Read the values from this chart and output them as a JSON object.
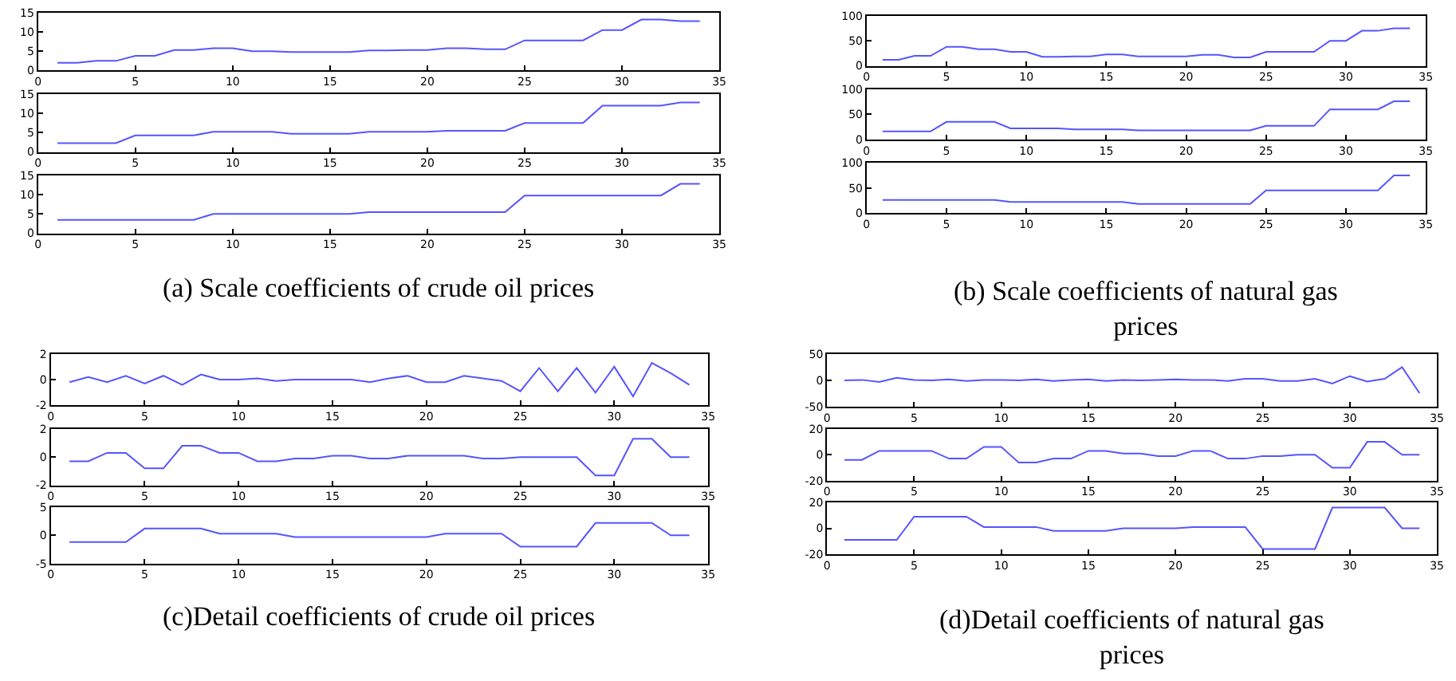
{
  "chart_data": [
    {
      "type": "line",
      "x": [
        1,
        2,
        3,
        4,
        5,
        6,
        7,
        8,
        9,
        10,
        11,
        12,
        13,
        14,
        15,
        16,
        17,
        18,
        19,
        20,
        21,
        22,
        23,
        24,
        25,
        26,
        27,
        28,
        29,
        30,
        31,
        32,
        33,
        34
      ],
      "values": [
        2,
        2,
        2.5,
        2.5,
        3.8,
        3.8,
        5.3,
        5.3,
        5.8,
        5.8,
        5,
        5,
        4.8,
        4.8,
        4.8,
        4.8,
        5.2,
        5.2,
        5.3,
        5.3,
        5.8,
        5.8,
        5.5,
        5.5,
        7.8,
        7.8,
        7.8,
        7.8,
        10.5,
        10.5,
        13.2,
        13.2,
        12.8,
        12.8
      ],
      "color": "#5555ff",
      "xlim": [
        0,
        35
      ],
      "xticks": [
        0,
        5,
        10,
        15,
        20,
        25,
        30,
        35
      ],
      "ylim": [
        0,
        15
      ],
      "yticks": [
        0,
        5,
        10,
        15
      ]
    },
    {
      "type": "line",
      "x": [
        1,
        2,
        3,
        4,
        5,
        6,
        7,
        8,
        9,
        10,
        11,
        12,
        13,
        14,
        15,
        16,
        17,
        18,
        19,
        20,
        21,
        22,
        23,
        24,
        25,
        26,
        27,
        28,
        29,
        30,
        31,
        32,
        33,
        34
      ],
      "values": [
        2.3,
        2.3,
        2.3,
        2.3,
        4.3,
        4.3,
        4.3,
        4.3,
        5.2,
        5.2,
        5.2,
        5.2,
        4.7,
        4.7,
        4.7,
        4.7,
        5.2,
        5.2,
        5.2,
        5.2,
        5.5,
        5.5,
        5.5,
        5.5,
        7.5,
        7.5,
        7.5,
        7.5,
        12,
        12,
        12,
        12,
        12.8,
        12.8
      ],
      "color": "#5555ff",
      "xlim": [
        0,
        35
      ],
      "xticks": [
        0,
        5,
        10,
        15,
        20,
        25,
        30,
        35
      ],
      "ylim": [
        0,
        15
      ],
      "yticks": [
        0,
        5,
        10,
        15
      ]
    },
    {
      "type": "line",
      "x": [
        1,
        2,
        3,
        4,
        5,
        6,
        7,
        8,
        9,
        10,
        11,
        12,
        13,
        14,
        15,
        16,
        17,
        18,
        19,
        20,
        21,
        22,
        23,
        24,
        25,
        26,
        27,
        28,
        29,
        30,
        31,
        32,
        33,
        34
      ],
      "values": [
        3.5,
        3.5,
        3.5,
        3.5,
        3.5,
        3.5,
        3.5,
        3.5,
        5,
        5,
        5,
        5,
        5,
        5,
        5,
        5,
        5.5,
        5.5,
        5.5,
        5.5,
        5.5,
        5.5,
        5.5,
        5.5,
        9.8,
        9.8,
        9.8,
        9.8,
        9.8,
        9.8,
        9.8,
        9.8,
        12.8,
        12.8
      ],
      "color": "#5555ff",
      "xlim": [
        0,
        35
      ],
      "xticks": [
        0,
        5,
        10,
        15,
        20,
        25,
        30,
        35
      ],
      "ylim": [
        0,
        15
      ],
      "yticks": [
        0,
        5,
        10,
        15
      ],
      "annotations": [
        "(a) Scale coefficients of crude oil prices"
      ]
    },
    {
      "type": "line",
      "x": [
        1,
        2,
        3,
        4,
        5,
        6,
        7,
        8,
        9,
        10,
        11,
        12,
        13,
        14,
        15,
        16,
        17,
        18,
        19,
        20,
        21,
        22,
        23,
        24,
        25,
        26,
        27,
        28,
        29,
        30,
        31,
        32,
        33,
        34
      ],
      "values": [
        12,
        12,
        20,
        20,
        38,
        38,
        33,
        33,
        28,
        28,
        18,
        18,
        19,
        19,
        23,
        23,
        19,
        19,
        19,
        19,
        22,
        22,
        17,
        17,
        28,
        28,
        28,
        28,
        50,
        50,
        70,
        70,
        75,
        75
      ],
      "color": "#5555ff",
      "xlim": [
        0,
        35
      ],
      "xticks": [
        0,
        5,
        10,
        15,
        20,
        25,
        30,
        35
      ],
      "ylim": [
        0,
        100
      ],
      "yticks": [
        0,
        50,
        100
      ]
    },
    {
      "type": "line",
      "x": [
        1,
        2,
        3,
        4,
        5,
        6,
        7,
        8,
        9,
        10,
        11,
        12,
        13,
        14,
        15,
        16,
        17,
        18,
        19,
        20,
        21,
        22,
        23,
        24,
        25,
        26,
        27,
        28,
        29,
        30,
        31,
        32,
        33,
        34
      ],
      "values": [
        16,
        16,
        16,
        16,
        35,
        35,
        35,
        35,
        22,
        22,
        22,
        22,
        20,
        20,
        20,
        20,
        18,
        18,
        18,
        18,
        18,
        18,
        18,
        18,
        27,
        27,
        27,
        27,
        60,
        60,
        60,
        60,
        76,
        76
      ],
      "color": "#5555ff",
      "xlim": [
        0,
        35
      ],
      "xticks": [
        0,
        5,
        10,
        15,
        20,
        25,
        30,
        35
      ],
      "ylim": [
        0,
        100
      ],
      "yticks": [
        0,
        50,
        100
      ]
    },
    {
      "type": "line",
      "x": [
        1,
        2,
        3,
        4,
        5,
        6,
        7,
        8,
        9,
        10,
        11,
        12,
        13,
        14,
        15,
        16,
        17,
        18,
        19,
        20,
        21,
        22,
        23,
        24,
        25,
        26,
        27,
        28,
        29,
        30,
        31,
        32,
        33,
        34
      ],
      "values": [
        26,
        26,
        26,
        26,
        26,
        26,
        26,
        26,
        22,
        22,
        22,
        22,
        22,
        22,
        22,
        22,
        18,
        18,
        18,
        18,
        18,
        18,
        18,
        18,
        45,
        45,
        45,
        45,
        45,
        45,
        45,
        45,
        75,
        75
      ],
      "color": "#5555ff",
      "xlim": [
        0,
        35
      ],
      "xticks": [
        0,
        5,
        10,
        15,
        20,
        25,
        30,
        35
      ],
      "ylim": [
        0,
        100
      ],
      "yticks": [
        0,
        50,
        100
      ],
      "annotations": [
        "(b) Scale coefficients of natural gas prices"
      ]
    },
    {
      "type": "line",
      "x": [
        1,
        2,
        3,
        4,
        5,
        6,
        7,
        8,
        9,
        10,
        11,
        12,
        13,
        14,
        15,
        16,
        17,
        18,
        19,
        20,
        21,
        22,
        23,
        24,
        25,
        26,
        27,
        28,
        29,
        30,
        31,
        32,
        33,
        34
      ],
      "values": [
        -0.2,
        0.2,
        -0.2,
        0.3,
        -0.3,
        0.3,
        -0.4,
        0.4,
        0,
        0,
        0.1,
        -0.1,
        0,
        0,
        0,
        0,
        -0.2,
        0.1,
        0.3,
        -0.2,
        -0.2,
        0.3,
        0.1,
        -0.1,
        -0.9,
        0.9,
        -0.9,
        0.9,
        -1,
        1,
        -1.3,
        1.3,
        0.5,
        -0.4
      ],
      "color": "#5555ff",
      "xlim": [
        0,
        35
      ],
      "xticks": [
        0,
        5,
        10,
        15,
        20,
        25,
        30,
        35
      ],
      "ylim": [
        -2,
        2
      ],
      "yticks": [
        -2,
        0,
        2
      ]
    },
    {
      "type": "line",
      "x": [
        1,
        2,
        3,
        4,
        5,
        6,
        7,
        8,
        9,
        10,
        11,
        12,
        13,
        14,
        15,
        16,
        17,
        18,
        19,
        20,
        21,
        22,
        23,
        24,
        25,
        26,
        27,
        28,
        29,
        30,
        31,
        32,
        33,
        34
      ],
      "values": [
        -0.3,
        -0.3,
        0.3,
        0.3,
        -0.8,
        -0.8,
        0.8,
        0.8,
        0.3,
        0.3,
        -0.3,
        -0.3,
        -0.1,
        -0.1,
        0.1,
        0.1,
        -0.1,
        -0.1,
        0.1,
        0.1,
        0.1,
        0.1,
        -0.1,
        -0.1,
        0,
        0,
        0,
        0,
        -1.3,
        -1.3,
        1.3,
        1.3,
        0,
        0
      ],
      "color": "#5555ff",
      "xlim": [
        0,
        35
      ],
      "xticks": [
        0,
        5,
        10,
        15,
        20,
        25,
        30,
        35
      ],
      "ylim": [
        -2,
        2
      ],
      "yticks": [
        -2,
        0,
        2
      ]
    },
    {
      "type": "line",
      "x": [
        1,
        2,
        3,
        4,
        5,
        6,
        7,
        8,
        9,
        10,
        11,
        12,
        13,
        14,
        15,
        16,
        17,
        18,
        19,
        20,
        21,
        22,
        23,
        24,
        25,
        26,
        27,
        28,
        29,
        30,
        31,
        32,
        33,
        34
      ],
      "values": [
        -1.2,
        -1.2,
        -1.2,
        -1.2,
        1.2,
        1.2,
        1.2,
        1.2,
        0.3,
        0.3,
        0.3,
        0.3,
        -0.3,
        -0.3,
        -0.3,
        -0.3,
        -0.3,
        -0.3,
        -0.3,
        -0.3,
        0.3,
        0.3,
        0.3,
        0.3,
        -2,
        -2,
        -2,
        -2,
        2.2,
        2.2,
        2.2,
        2.2,
        0,
        0
      ],
      "color": "#5555ff",
      "xlim": [
        0,
        35
      ],
      "xticks": [
        0,
        5,
        10,
        15,
        20,
        25,
        30,
        35
      ],
      "ylim": [
        -5,
        5
      ],
      "yticks": [
        -5,
        0,
        5
      ],
      "annotations": [
        "(c)Detail coefficients of crude oil prices"
      ]
    },
    {
      "type": "line",
      "x": [
        1,
        2,
        3,
        4,
        5,
        6,
        7,
        8,
        9,
        10,
        11,
        12,
        13,
        14,
        15,
        16,
        17,
        18,
        19,
        20,
        21,
        22,
        23,
        24,
        25,
        26,
        27,
        28,
        29,
        30,
        31,
        32,
        33,
        34
      ],
      "values": [
        0,
        1,
        -3,
        5,
        1,
        0,
        2,
        -1,
        1,
        1,
        0,
        2,
        -1,
        1,
        2,
        -1,
        1,
        0,
        1,
        2,
        1,
        1,
        -1,
        3,
        3,
        -1,
        -1,
        3,
        -6,
        8,
        -2,
        3,
        25,
        -24
      ],
      "color": "#5555ff",
      "xlim": [
        0,
        35
      ],
      "xticks": [
        0,
        5,
        10,
        15,
        20,
        25,
        30,
        35
      ],
      "ylim": [
        -50,
        50
      ],
      "yticks": [
        -50,
        0,
        50
      ]
    },
    {
      "type": "line",
      "x": [
        1,
        2,
        3,
        4,
        5,
        6,
        7,
        8,
        9,
        10,
        11,
        12,
        13,
        14,
        15,
        16,
        17,
        18,
        19,
        20,
        21,
        22,
        23,
        24,
        25,
        26,
        27,
        28,
        29,
        30,
        31,
        32,
        33,
        34
      ],
      "values": [
        -4,
        -4,
        3,
        3,
        3,
        3,
        -3,
        -3,
        6,
        6,
        -6,
        -6,
        -3,
        -3,
        3,
        3,
        1,
        1,
        -1,
        -1,
        3,
        3,
        -3,
        -3,
        -1,
        -1,
        0,
        0,
        -10,
        -10,
        10,
        10,
        0,
        0
      ],
      "color": "#5555ff",
      "xlim": [
        0,
        35
      ],
      "xticks": [
        0,
        5,
        10,
        15,
        20,
        25,
        30,
        35
      ],
      "ylim": [
        -20,
        20
      ],
      "yticks": [
        -20,
        0,
        20
      ]
    },
    {
      "type": "line",
      "x": [
        1,
        2,
        3,
        4,
        5,
        6,
        7,
        8,
        9,
        10,
        11,
        12,
        13,
        14,
        15,
        16,
        17,
        18,
        19,
        20,
        21,
        22,
        23,
        24,
        25,
        26,
        27,
        28,
        29,
        30,
        31,
        32,
        33,
        34
      ],
      "values": [
        -9,
        -9,
        -9,
        -9,
        9,
        9,
        9,
        9,
        1,
        1,
        1,
        1,
        -2,
        -2,
        -2,
        -2,
        0,
        0,
        0,
        0,
        1,
        1,
        1,
        1,
        -16,
        -16,
        -16,
        -16,
        16,
        16,
        16,
        16,
        0,
        0
      ],
      "color": "#5555ff",
      "xlim": [
        0,
        35
      ],
      "xticks": [
        0,
        5,
        10,
        15,
        20,
        25,
        30,
        35
      ],
      "ylim": [
        -20,
        20
      ],
      "yticks": [
        -20,
        0,
        20
      ],
      "annotations": [
        "(d)Detail coefficients of natural gas prices"
      ]
    }
  ]
}
